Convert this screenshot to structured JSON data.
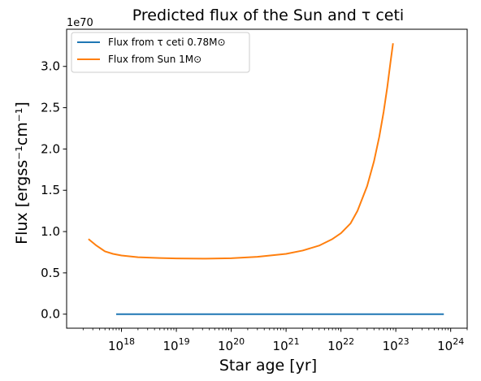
{
  "chart_data": {
    "type": "line",
    "title": "Predicted flux of the Sun and τ ceti",
    "xlabel": "Star age [yr]",
    "ylabel": "Flux [ergss⁻¹cm⁻¹]",
    "y_offset_label": "1e70",
    "xscale": "log",
    "xlim": [
      1e+17,
      2e+24
    ],
    "ylim": [
      -0.17,
      3.45
    ],
    "grid": false,
    "legend_position": "top-left",
    "x_ticks": [
      {
        "value": 1e+18,
        "base": "10",
        "exp": "18"
      },
      {
        "value": 1e+19,
        "base": "10",
        "exp": "19"
      },
      {
        "value": 1e+20,
        "base": "10",
        "exp": "20"
      },
      {
        "value": 1e+21,
        "base": "10",
        "exp": "21"
      },
      {
        "value": 1e+22,
        "base": "10",
        "exp": "22"
      },
      {
        "value": 1e+23,
        "base": "10",
        "exp": "23"
      },
      {
        "value": 1e+24,
        "base": "10",
        "exp": "24"
      }
    ],
    "y_ticks": [
      {
        "value": 0.0,
        "label": "0.0"
      },
      {
        "value": 0.5,
        "label": "0.5"
      },
      {
        "value": 1.0,
        "label": "1.0"
      },
      {
        "value": 1.5,
        "label": "1.5"
      },
      {
        "value": 2.0,
        "label": "2.0"
      },
      {
        "value": 2.5,
        "label": "2.5"
      },
      {
        "value": 3.0,
        "label": "3.0"
      }
    ],
    "series": [
      {
        "name": "Flux from τ ceti 0.78M⊙",
        "color": "#1f77b4",
        "x": [
          8e+17,
          1e+19,
          1e+20,
          1e+21,
          1e+22,
          1e+23,
          7.5e+23
        ],
        "y": [
          0.0,
          0.0,
          0.0,
          0.0,
          0.0,
          0.0,
          0.0
        ]
      },
      {
        "name": "Flux from Sun 1M⊙",
        "color": "#ff7f0e",
        "x": [
          2.5e+17,
          3.5e+17,
          5e+17,
          7e+17,
          1e+18,
          2e+18,
          5e+18,
          1e+19,
          3e+19,
          1e+20,
          3e+20,
          1e+21,
          2e+21,
          4e+21,
          7e+21,
          1e+22,
          1.5e+22,
          2e+22,
          3e+22,
          4e+22,
          5e+22,
          6e+22,
          7e+22,
          8e+22,
          8.9e+22
        ],
        "y": [
          0.91,
          0.83,
          0.76,
          0.73,
          0.71,
          0.69,
          0.68,
          0.675,
          0.672,
          0.677,
          0.695,
          0.73,
          0.77,
          0.83,
          0.91,
          0.98,
          1.1,
          1.25,
          1.55,
          1.85,
          2.15,
          2.45,
          2.75,
          3.05,
          3.28
        ]
      }
    ]
  }
}
